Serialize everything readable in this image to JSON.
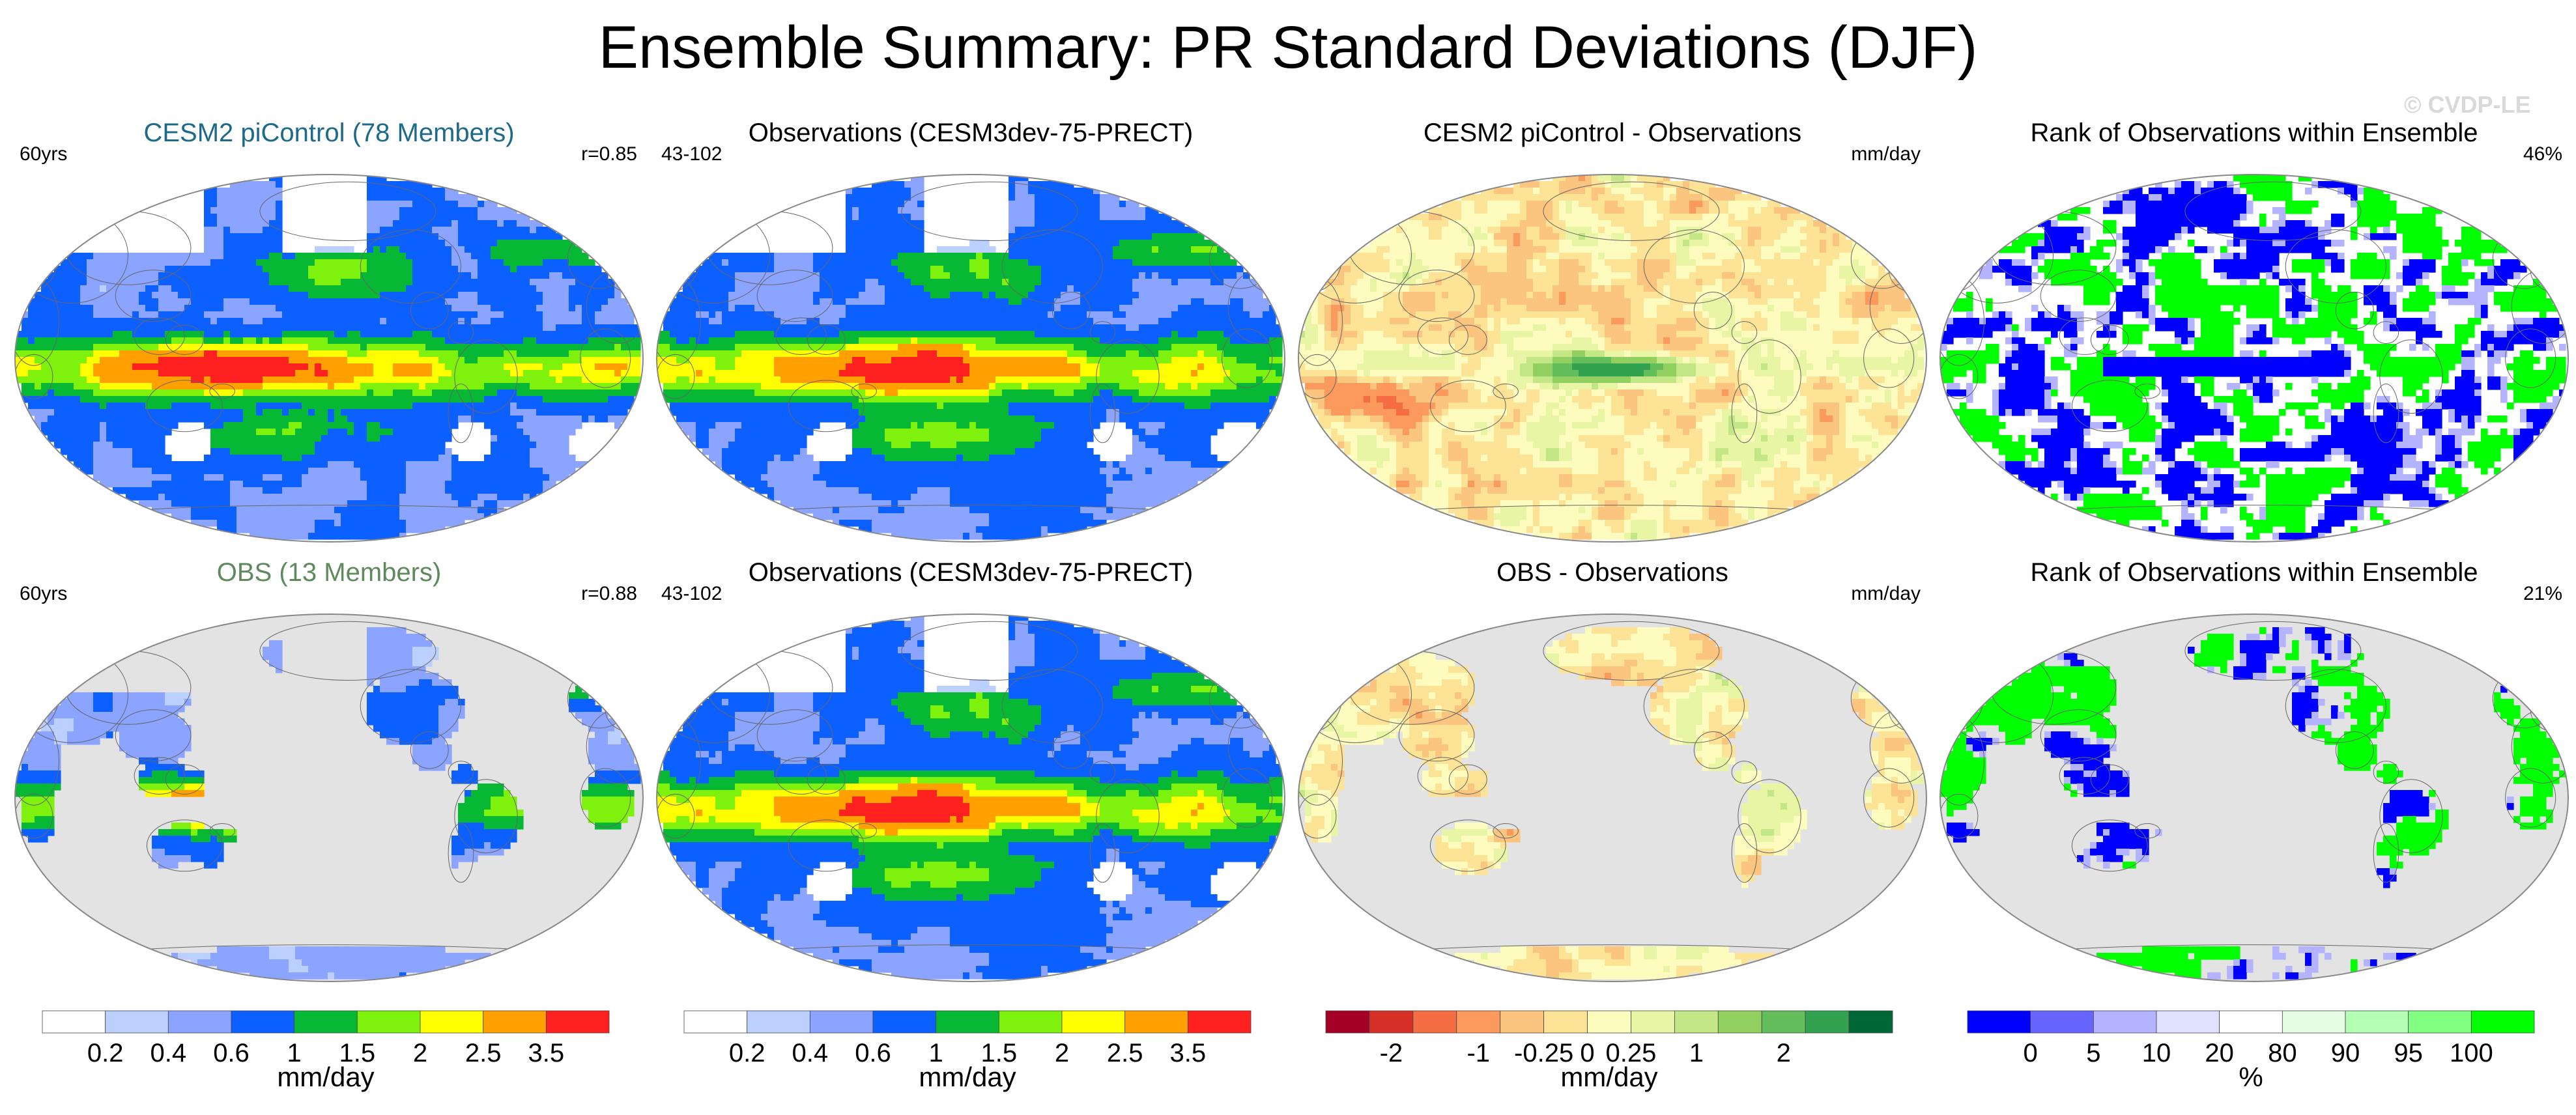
{
  "title": "Ensemble Summary: PR Standard Deviations (DJF)",
  "watermark": "© CVDP-LE",
  "colors": {
    "precip": [
      "#ffffff",
      "#bcd0ff",
      "#8aa4ff",
      "#0c60ff",
      "#07b835",
      "#7ef20c",
      "#ffff00",
      "#ffa000",
      "#ff2020"
    ],
    "diff": [
      "#a50026",
      "#d62f27",
      "#f46d43",
      "#fb9a5c",
      "#fcc57f",
      "#fde396",
      "#fefbbf",
      "#e8f5a4",
      "#c3e687",
      "#91cf60",
      "#63bd5a",
      "#32a150",
      "#006837"
    ],
    "rank": [
      "#0000ff",
      "#6666ff",
      "#b3b3ff",
      "#e0e0ff",
      "#ffffff",
      "#e5ffe5",
      "#b3ffb3",
      "#80ff80",
      "#00ff00"
    ],
    "land_gray": "#e3e3e3"
  },
  "rows": [
    {
      "panels": [
        {
          "title": "CESM2 piControl (78 Members)",
          "title_color": "#1e6a8a",
          "left": "60yrs",
          "right": "r=0.85",
          "field": "model_std",
          "mask": "none"
        },
        {
          "title": "Observations (CESM3dev-75-PRECT)",
          "title_color": "#000000",
          "left": "43-102",
          "right": "",
          "field": "obs_std",
          "mask": "none"
        },
        {
          "title": "CESM2 piControl - Observations",
          "title_color": "#000000",
          "left": "",
          "right": "mm/day",
          "field": "diff_full",
          "mask": "none"
        },
        {
          "title": "Rank of Observations within Ensemble",
          "title_color": "#000000",
          "left": "",
          "right": "46%",
          "field": "rank_full",
          "mask": "none"
        }
      ]
    },
    {
      "panels": [
        {
          "title": "OBS (13 Members)",
          "title_color": "#5e8a5e",
          "left": "60yrs",
          "right": "r=0.88",
          "field": "obsens_std",
          "mask": "land"
        },
        {
          "title": "Observations (CESM3dev-75-PRECT)",
          "title_color": "#000000",
          "left": "43-102",
          "right": "",
          "field": "obs_std",
          "mask": "none"
        },
        {
          "title": "OBS - Observations",
          "title_color": "#000000",
          "left": "",
          "right": "mm/day",
          "field": "diff_land",
          "mask": "land"
        },
        {
          "title": "Rank of Observations within Ensemble",
          "title_color": "#000000",
          "left": "",
          "right": "21%",
          "field": "rank_land",
          "mask": "land"
        }
      ]
    }
  ],
  "colorbars": [
    {
      "type": "precip",
      "labels": [
        "0.2",
        "0.4",
        "0.6",
        "1",
        "1.5",
        "2",
        "2.5",
        "3.5"
      ],
      "units": "mm/day"
    },
    {
      "type": "precip",
      "labels": [
        "0.2",
        "0.4",
        "0.6",
        "1",
        "1.5",
        "2",
        "2.5",
        "3.5"
      ],
      "units": "mm/day"
    },
    {
      "type": "diff",
      "labels": [
        "-2",
        "-1",
        "-0.25",
        "0",
        "0.25",
        "1",
        "2"
      ],
      "label_positions": [
        1.5,
        3.5,
        5,
        6,
        7,
        8.5,
        10.5
      ],
      "units": "mm/day"
    },
    {
      "type": "rank",
      "labels": [
        "0",
        "5",
        "10",
        "20",
        "80",
        "90",
        "95",
        "100"
      ],
      "units": "%"
    }
  ],
  "chart_data": [
    {
      "type": "heatmap",
      "title": "CESM2 piControl (78 Members)",
      "projection": "Robinson",
      "description_units": "mm/day",
      "period": "60yrs",
      "pattern_correlation": 0.85,
      "levels": [
        0.2,
        0.4,
        0.6,
        1,
        1.5,
        2,
        2.5,
        3.5
      ]
    },
    {
      "type": "heatmap",
      "title": "Observations (CESM3dev-75-PRECT)",
      "projection": "Robinson",
      "period": "43-102",
      "levels": [
        0.2,
        0.4,
        0.6,
        1,
        1.5,
        2,
        2.5,
        3.5
      ]
    },
    {
      "type": "heatmap",
      "title": "CESM2 piControl - Observations",
      "projection": "Robinson",
      "units": "mm/day",
      "levels": [
        -2,
        -1,
        -0.25,
        0,
        0.25,
        1,
        2
      ]
    },
    {
      "type": "heatmap",
      "title": "Rank of Observations within Ensemble",
      "projection": "Robinson",
      "summary_percent": 46,
      "levels": [
        0,
        5,
        10,
        20,
        80,
        90,
        95,
        100
      ]
    },
    {
      "type": "heatmap",
      "title": "OBS (13 Members)",
      "projection": "Robinson",
      "period": "60yrs",
      "pattern_correlation": 0.88,
      "levels": [
        0.2,
        0.4,
        0.6,
        1,
        1.5,
        2,
        2.5,
        3.5
      ]
    },
    {
      "type": "heatmap",
      "title": "Observations (CESM3dev-75-PRECT)",
      "projection": "Robinson",
      "period": "43-102",
      "levels": [
        0.2,
        0.4,
        0.6,
        1,
        1.5,
        2,
        2.5,
        3.5
      ]
    },
    {
      "type": "heatmap",
      "title": "OBS - Observations",
      "projection": "Robinson",
      "units": "mm/day",
      "levels": [
        -2,
        -1,
        -0.25,
        0,
        0.25,
        1,
        2
      ]
    },
    {
      "type": "heatmap",
      "title": "Rank of Observations within Ensemble",
      "projection": "Robinson",
      "summary_percent": 21,
      "levels": [
        0,
        5,
        10,
        20,
        80,
        90,
        95,
        100
      ]
    }
  ]
}
